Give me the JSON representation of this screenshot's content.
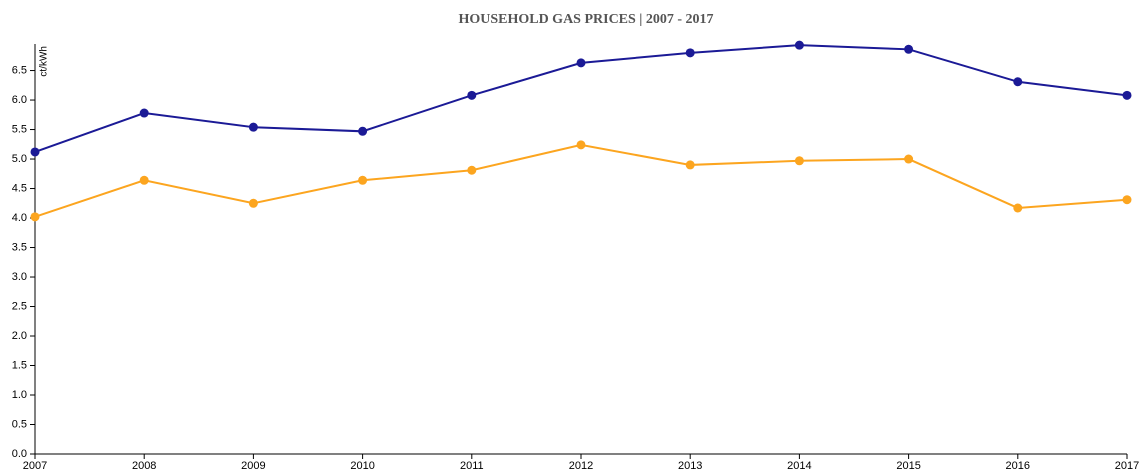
{
  "chart_data": {
    "type": "line",
    "title": "HOUSEHOLD GAS PRICES | 2007 - 2017",
    "y_label": "ct/kWh",
    "x": [
      2007,
      2008,
      2009,
      2010,
      2011,
      2012,
      2013,
      2014,
      2015,
      2016,
      2017
    ],
    "series": [
      {
        "color": "#1b1a96",
        "values": [
          5.12,
          5.78,
          5.54,
          5.47,
          6.08,
          6.63,
          6.8,
          6.93,
          6.86,
          6.31,
          6.08
        ]
      },
      {
        "color": "#fca51f",
        "values": [
          4.02,
          4.64,
          4.25,
          4.64,
          4.81,
          5.24,
          4.9,
          4.97,
          5.0,
          4.17,
          4.31
        ]
      }
    ],
    "xlim": [
      2007,
      2017
    ],
    "xticks": [
      2007,
      2008,
      2009,
      2010,
      2011,
      2012,
      2013,
      2014,
      2015,
      2016,
      2017
    ],
    "ylim": [
      0,
      6.95
    ],
    "yticks": [
      {
        "value": 0,
        "label": "0.0"
      },
      0.5,
      {
        "value": 1,
        "label": "1.0"
      },
      1.5,
      {
        "value": 2,
        "label": "2.0"
      },
      2.5,
      {
        "value": 3,
        "label": "3.0"
      },
      3.5,
      {
        "value": 4,
        "label": "4.0"
      },
      4.5,
      {
        "value": 5,
        "label": "5.0"
      },
      5.5,
      {
        "value": 6,
        "label": "6.0"
      },
      6.5
    ],
    "grid": false
  }
}
